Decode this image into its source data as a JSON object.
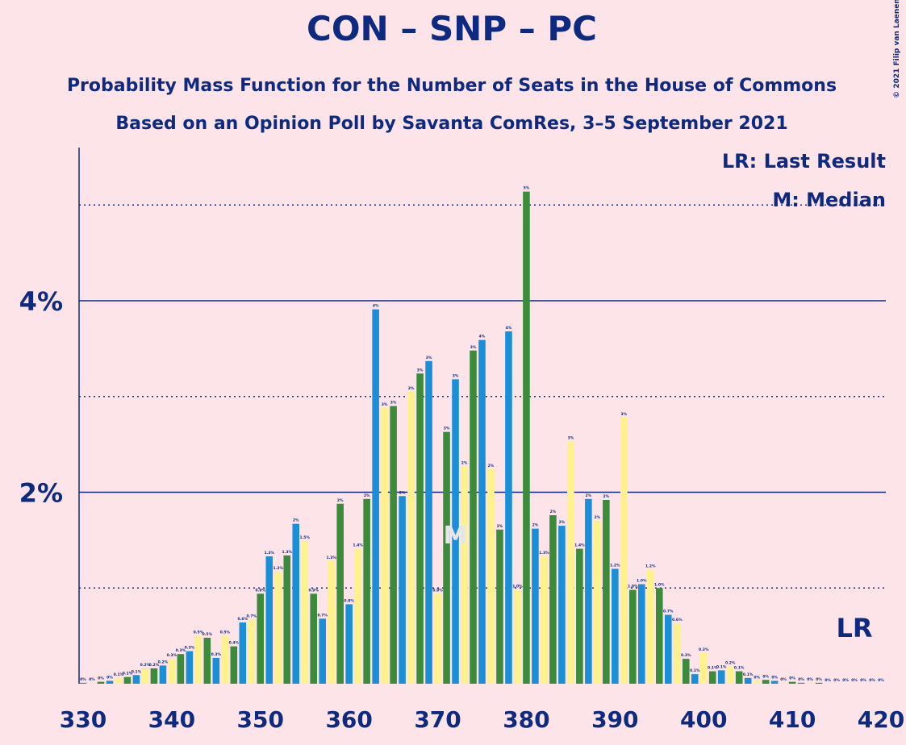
{
  "chart_data": {
    "type": "bar",
    "title": "CON – SNP – PC",
    "subtitle": "Probability Mass Function for the Number of Seats in the House of Commons",
    "subtitle2": "Based on an Opinion Poll by Savanta ComRes, 3–5 September 2021",
    "copyright": "© 2021 Filip van Laenen",
    "legend_lr": "LR: Last Result",
    "legend_median": "M: Median",
    "median": 372,
    "median_label": "M",
    "last_result": 417,
    "last_result_label": "LR",
    "x": [
      330,
      331,
      332,
      333,
      334,
      335,
      336,
      337,
      338,
      339,
      340,
      341,
      342,
      343,
      344,
      345,
      346,
      347,
      348,
      349,
      350,
      351,
      352,
      353,
      354,
      355,
      356,
      357,
      358,
      359,
      360,
      361,
      362,
      363,
      364,
      365,
      366,
      367,
      368,
      369,
      370,
      371,
      372,
      373,
      374,
      375,
      376,
      377,
      378,
      379,
      380,
      381,
      382,
      383,
      384,
      385,
      386,
      387,
      388,
      389,
      390,
      391,
      392,
      393,
      394,
      395,
      396,
      397,
      398,
      399,
      400,
      401,
      402,
      403,
      404,
      405,
      406,
      407,
      408,
      409,
      410,
      411,
      412,
      413,
      414,
      415,
      416,
      417,
      418,
      419,
      420
    ],
    "values": [
      0.01,
      0.01,
      0.02,
      0.03,
      0.06,
      0.07,
      0.09,
      0.16,
      0.16,
      0.19,
      0.26,
      0.31,
      0.34,
      0.5,
      0.48,
      0.27,
      0.5,
      0.39,
      0.64,
      0.67,
      0.94,
      1.33,
      1.17,
      1.34,
      1.67,
      1.49,
      0.94,
      0.68,
      1.28,
      1.88,
      0.83,
      1.41,
      1.93,
      3.91,
      2.88,
      2.9,
      1.96,
      3.05,
      3.24,
      3.37,
      0.94,
      2.63,
      3.18,
      2.27,
      3.48,
      3.59,
      2.24,
      1.61,
      3.68,
      0.98,
      5.14,
      1.62,
      1.33,
      1.76,
      1.65,
      2.53,
      1.41,
      1.93,
      1.7,
      1.92,
      1.2,
      2.78,
      0.98,
      1.04,
      1.19,
      1.0,
      0.72,
      0.63,
      0.26,
      0.1,
      0.32,
      0.13,
      0.14,
      0.18,
      0.13,
      0.06,
      0.03,
      0.04,
      0.03,
      0.01,
      0.02,
      0.01,
      0.01,
      0.01,
      0,
      0,
      0,
      0,
      0,
      0,
      0
    ],
    "value_labels": [
      "0%",
      "0%",
      "0%",
      "0%",
      "0.1%",
      "0.1%",
      "0.1%",
      "0.2%",
      "0.2%",
      "0.2%",
      "0.3%",
      "0.3%",
      "0.3%",
      "0.5%",
      "0.5%",
      "0.3%",
      "0.5%",
      "0.4%",
      "0.6%",
      "0.7%",
      "0.9%",
      "1.3%",
      "1.2%",
      "1.3%",
      "2%",
      "1.5%",
      "0.9%",
      "0.7%",
      "1.3%",
      "2%",
      "0.8%",
      "1.4%",
      "2%",
      "4%",
      "3%",
      "3%",
      "2%",
      "3%",
      "3%",
      "3%",
      "0.9%",
      "3%",
      "3%",
      "2%",
      "3%",
      "4%",
      "2%",
      "2%",
      "4%",
      "1.0%",
      "5%",
      "2%",
      "1.3%",
      "2%",
      "2%",
      "3%",
      "1.4%",
      "2%",
      "2%",
      "2%",
      "1.2%",
      "3%",
      "1.0%",
      "1.0%",
      "1.2%",
      "1.0%",
      "0.7%",
      "0.6%",
      "0.3%",
      "0.1%",
      "0.3%",
      "0.1%",
      "0.1%",
      "0.2%",
      "0.1%",
      "0.1%",
      "0%",
      "0%",
      "0%",
      "0%",
      "0%",
      "0%",
      "0%",
      "0%",
      "0%",
      "0%",
      "0%",
      "0%",
      "0%",
      "0%",
      "0%"
    ],
    "bar_colors": [
      "#1a8fd8",
      "#fff28c",
      "#3b8b3b"
    ],
    "xlim": [
      330,
      420
    ],
    "ylim": [
      0,
      5.6
    ],
    "xticks": [
      330,
      340,
      350,
      360,
      370,
      380,
      390,
      400,
      410,
      420
    ],
    "yticks": [
      {
        "value": 2,
        "label": "2%"
      },
      {
        "value": 4,
        "label": "4%"
      }
    ],
    "minor_gridlines": [
      1,
      3,
      5
    ],
    "grid": true
  }
}
